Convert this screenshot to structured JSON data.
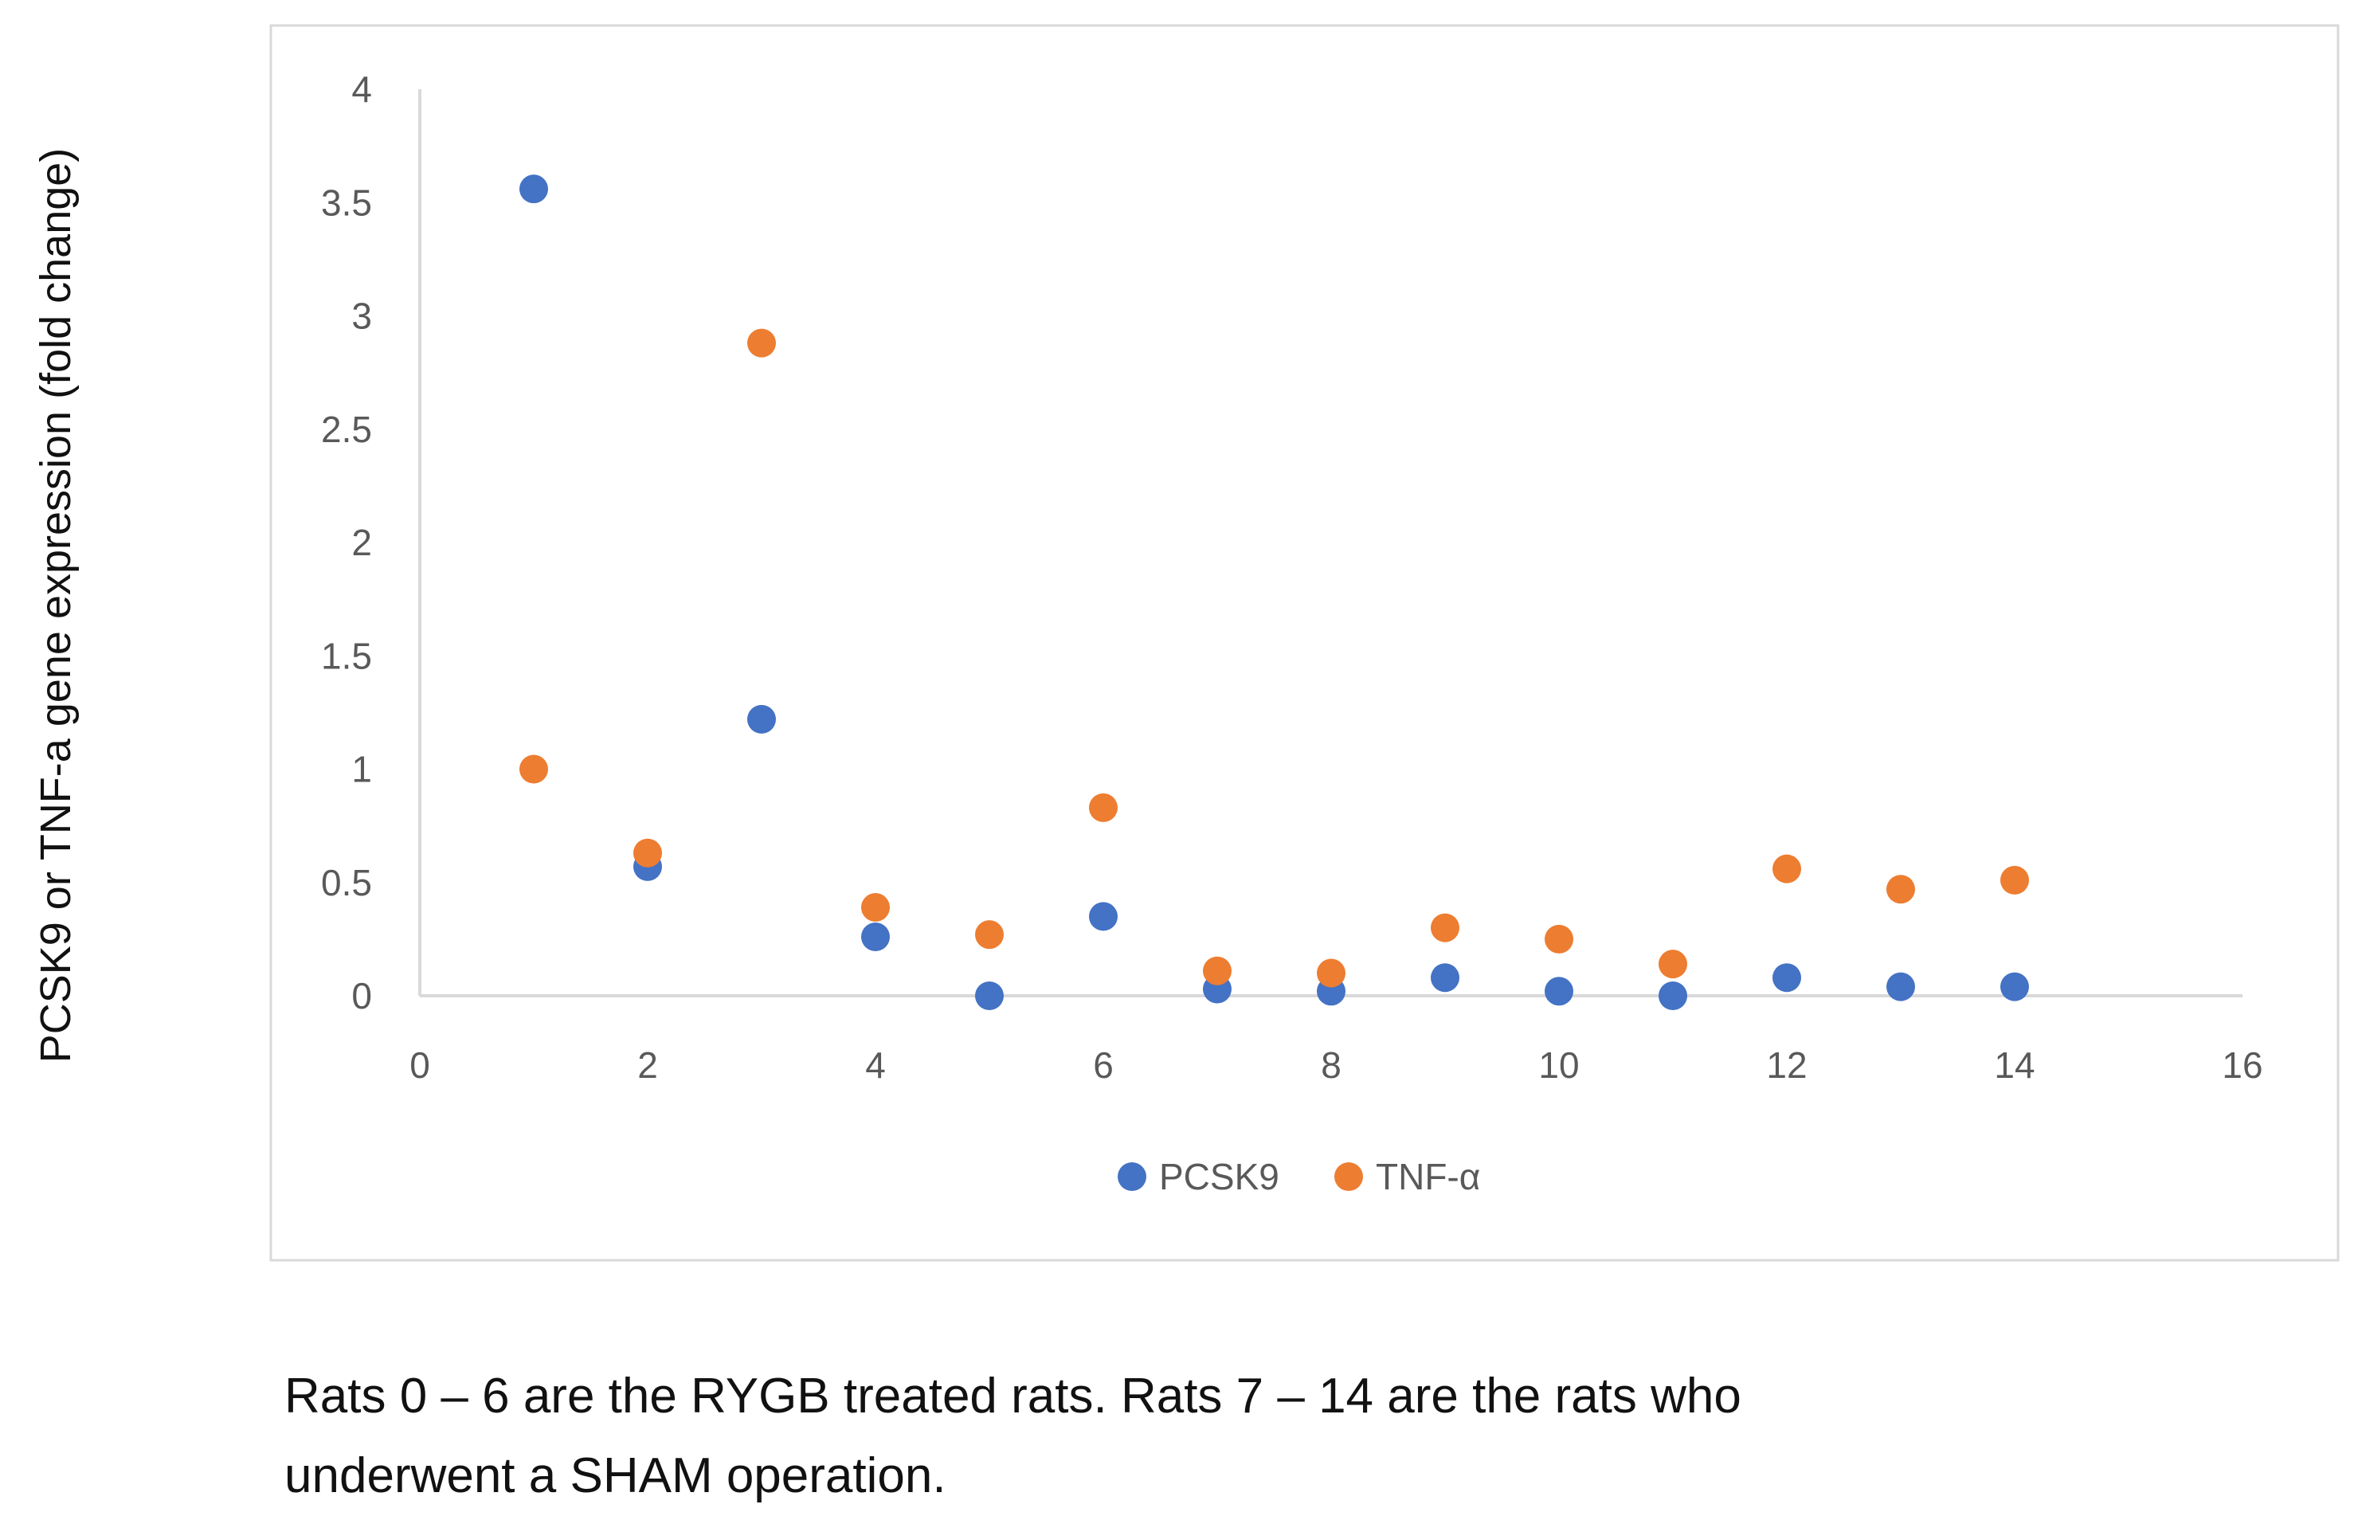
{
  "chart_data": {
    "type": "scatter",
    "title": "",
    "xlabel": "",
    "ylabel": "PCSK9 or TNF-a gene expression (fold change)",
    "xlim": [
      0,
      16
    ],
    "ylim": [
      0,
      4
    ],
    "x_ticks": [
      0,
      2,
      4,
      6,
      8,
      10,
      12,
      14,
      16
    ],
    "y_ticks": [
      0,
      0.5,
      1,
      1.5,
      2,
      2.5,
      3,
      3.5,
      4
    ],
    "grid": false,
    "legend_position": "bottom",
    "series": [
      {
        "name": "PCSK9",
        "color": "#4472C4",
        "x": [
          1,
          2,
          3,
          4,
          5,
          6,
          7,
          8,
          9,
          10,
          11,
          12,
          13,
          14
        ],
        "y": [
          3.56,
          0.57,
          1.22,
          0.26,
          0.0,
          0.35,
          0.03,
          0.02,
          0.08,
          0.02,
          0.0,
          0.08,
          0.04,
          0.04
        ]
      },
      {
        "name": "TNF-α",
        "color": "#ED7D31",
        "x": [
          1,
          2,
          3,
          4,
          5,
          6,
          7,
          8,
          9,
          10,
          11,
          12,
          13,
          14
        ],
        "y": [
          1.0,
          0.63,
          2.88,
          0.39,
          0.27,
          0.83,
          0.11,
          0.1,
          0.3,
          0.25,
          0.14,
          0.56,
          0.47,
          0.51
        ]
      }
    ],
    "caption": [
      "Rats 0 – 6 are the  RYGB treated rats. Rats 7 – 14 are the rats who",
      "underwent a SHAM operation."
    ]
  }
}
